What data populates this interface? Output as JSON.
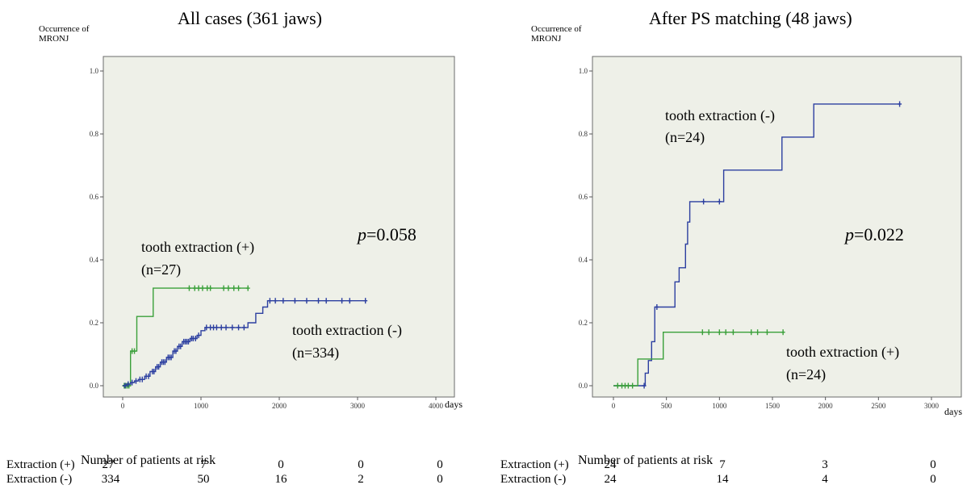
{
  "chart_data": [
    {
      "type": "line",
      "title": "All cases (361 jaws)",
      "ylabel": "Occurrence of MRONJ",
      "ylabel_lines": [
        "Occurrence of",
        "MRONJ"
      ],
      "xlabel": "days",
      "xlim": [
        0,
        4000
      ],
      "ylim": [
        0,
        1.0
      ],
      "x_ticks": [
        0,
        1000,
        2000,
        3000,
        4000
      ],
      "y_ticks": [
        0.0,
        0.2,
        0.4,
        0.6,
        0.8,
        1.0
      ],
      "y_tick_labels": [
        "0.0",
        "0.2",
        "0.4",
        "0.6",
        "0.8",
        "1.0"
      ],
      "background": "#eef0e8",
      "p_value_label": "=0.058",
      "p_symbol": "p",
      "series": [
        {
          "name": "tooth extraction (+)",
          "n_label": "(n=27)",
          "color": "#3aa03a",
          "steps": [
            [
              0,
              0
            ],
            [
              100,
              0
            ],
            [
              100,
              0.11
            ],
            [
              180,
              0.11
            ],
            [
              180,
              0.22
            ],
            [
              390,
              0.22
            ],
            [
              390,
              0.31
            ],
            [
              1600,
              0.31
            ]
          ],
          "censors": [
            [
              20,
              0
            ],
            [
              40,
              0
            ],
            [
              60,
              0
            ],
            [
              80,
              0
            ],
            [
              120,
              0.11
            ],
            [
              150,
              0.11
            ],
            [
              850,
              0.31
            ],
            [
              920,
              0.31
            ],
            [
              970,
              0.31
            ],
            [
              1020,
              0.31
            ],
            [
              1080,
              0.31
            ],
            [
              1120,
              0.31
            ],
            [
              1290,
              0.31
            ],
            [
              1350,
              0.31
            ],
            [
              1420,
              0.31
            ],
            [
              1480,
              0.31
            ],
            [
              1600,
              0.31
            ]
          ]
        },
        {
          "name": "tooth extraction (-)",
          "n_label": "(n=334)",
          "color": "#2c3fa0",
          "steps": [
            [
              0,
              0
            ],
            [
              50,
              0
            ],
            [
              50,
              0.005
            ],
            [
              100,
              0.005
            ],
            [
              100,
              0.01
            ],
            [
              150,
              0.01
            ],
            [
              150,
              0.015
            ],
            [
              200,
              0.015
            ],
            [
              200,
              0.02
            ],
            [
              280,
              0.02
            ],
            [
              280,
              0.03
            ],
            [
              350,
              0.03
            ],
            [
              350,
              0.045
            ],
            [
              420,
              0.045
            ],
            [
              420,
              0.06
            ],
            [
              480,
              0.06
            ],
            [
              480,
              0.075
            ],
            [
              560,
              0.075
            ],
            [
              560,
              0.09
            ],
            [
              640,
              0.09
            ],
            [
              640,
              0.11
            ],
            [
              700,
              0.11
            ],
            [
              700,
              0.125
            ],
            [
              760,
              0.125
            ],
            [
              760,
              0.14
            ],
            [
              860,
              0.14
            ],
            [
              860,
              0.15
            ],
            [
              950,
              0.15
            ],
            [
              950,
              0.16
            ],
            [
              1000,
              0.16
            ],
            [
              1000,
              0.175
            ],
            [
              1050,
              0.175
            ],
            [
              1050,
              0.185
            ],
            [
              1600,
              0.185
            ],
            [
              1600,
              0.2
            ],
            [
              1700,
              0.2
            ],
            [
              1700,
              0.23
            ],
            [
              1790,
              0.23
            ],
            [
              1790,
              0.25
            ],
            [
              1850,
              0.25
            ],
            [
              1850,
              0.27
            ],
            [
              3100,
              0.27
            ]
          ],
          "censors": [
            [
              30,
              0
            ],
            [
              70,
              0.005
            ],
            [
              120,
              0.01
            ],
            [
              170,
              0.015
            ],
            [
              220,
              0.02
            ],
            [
              250,
              0.02
            ],
            [
              300,
              0.03
            ],
            [
              330,
              0.03
            ],
            [
              380,
              0.045
            ],
            [
              400,
              0.045
            ],
            [
              440,
              0.06
            ],
            [
              460,
              0.06
            ],
            [
              500,
              0.075
            ],
            [
              520,
              0.075
            ],
            [
              540,
              0.075
            ],
            [
              580,
              0.09
            ],
            [
              600,
              0.09
            ],
            [
              620,
              0.09
            ],
            [
              660,
              0.11
            ],
            [
              680,
              0.11
            ],
            [
              720,
              0.125
            ],
            [
              740,
              0.125
            ],
            [
              780,
              0.14
            ],
            [
              800,
              0.14
            ],
            [
              820,
              0.14
            ],
            [
              840,
              0.14
            ],
            [
              880,
              0.15
            ],
            [
              900,
              0.15
            ],
            [
              930,
              0.15
            ],
            [
              970,
              0.16
            ],
            [
              1070,
              0.185
            ],
            [
              1120,
              0.185
            ],
            [
              1160,
              0.185
            ],
            [
              1200,
              0.185
            ],
            [
              1260,
              0.185
            ],
            [
              1320,
              0.185
            ],
            [
              1400,
              0.185
            ],
            [
              1480,
              0.185
            ],
            [
              1550,
              0.185
            ],
            [
              1880,
              0.27
            ],
            [
              1950,
              0.27
            ],
            [
              2050,
              0.27
            ],
            [
              2200,
              0.27
            ],
            [
              2350,
              0.27
            ],
            [
              2500,
              0.27
            ],
            [
              2600,
              0.27
            ],
            [
              2800,
              0.27
            ],
            [
              2900,
              0.27
            ],
            [
              3100,
              0.27
            ]
          ]
        }
      ],
      "risk_table": {
        "title": "Number of patients at risk",
        "rows": [
          {
            "label": "Extraction (+)",
            "values": [
              "27",
              "7",
              "0",
              "0",
              "0"
            ]
          },
          {
            "label": "Extraction (-)",
            "values": [
              "334",
              "50",
              "16",
              "2",
              "0"
            ]
          }
        ]
      }
    },
    {
      "type": "line",
      "title": "After PS matching  (48 jaws)",
      "ylabel": "Occurrence of MRONJ",
      "ylabel_lines": [
        "Occurrence of",
        "MRONJ"
      ],
      "xlabel": "days",
      "xlim": [
        0,
        3000
      ],
      "ylim": [
        0,
        1.0
      ],
      "x_ticks": [
        0,
        500,
        1000,
        1500,
        2000,
        2500,
        3000
      ],
      "y_ticks": [
        0.0,
        0.2,
        0.4,
        0.6,
        0.8,
        1.0
      ],
      "y_tick_labels": [
        "0.0",
        "0.2",
        "0.4",
        "0.6",
        "0.8",
        "1.0"
      ],
      "background": "#eef0e8",
      "p_value_label": "=0.022",
      "p_symbol": "p",
      "series": [
        {
          "name": "tooth extraction (-)",
          "n_label": "(n=24)",
          "color": "#2c3fa0",
          "steps": [
            [
              0,
              0
            ],
            [
              300,
              0
            ],
            [
              300,
              0.04
            ],
            [
              330,
              0.04
            ],
            [
              330,
              0.08
            ],
            [
              360,
              0.08
            ],
            [
              360,
              0.14
            ],
            [
              390,
              0.14
            ],
            [
              390,
              0.25
            ],
            [
              580,
              0.25
            ],
            [
              580,
              0.33
            ],
            [
              620,
              0.33
            ],
            [
              620,
              0.375
            ],
            [
              680,
              0.375
            ],
            [
              680,
              0.45
            ],
            [
              700,
              0.45
            ],
            [
              700,
              0.52
            ],
            [
              720,
              0.52
            ],
            [
              720,
              0.585
            ],
            [
              1040,
              0.585
            ],
            [
              1040,
              0.685
            ],
            [
              1590,
              0.685
            ],
            [
              1590,
              0.79
            ],
            [
              1890,
              0.79
            ],
            [
              1890,
              0.895
            ],
            [
              2700,
              0.895
            ]
          ],
          "censors": [
            [
              290,
              0
            ],
            [
              410,
              0.25
            ],
            [
              850,
              0.585
            ],
            [
              1000,
              0.585
            ],
            [
              2700,
              0.895
            ]
          ]
        },
        {
          "name": "tooth extraction (+)",
          "n_label": "(n=24)",
          "color": "#3aa03a",
          "steps": [
            [
              0,
              0
            ],
            [
              230,
              0
            ],
            [
              230,
              0.085
            ],
            [
              470,
              0.085
            ],
            [
              470,
              0.17
            ],
            [
              1600,
              0.17
            ]
          ],
          "censors": [
            [
              40,
              0
            ],
            [
              80,
              0
            ],
            [
              110,
              0
            ],
            [
              140,
              0
            ],
            [
              180,
              0
            ],
            [
              840,
              0.17
            ],
            [
              900,
              0.17
            ],
            [
              1000,
              0.17
            ],
            [
              1060,
              0.17
            ],
            [
              1130,
              0.17
            ],
            [
              1300,
              0.17
            ],
            [
              1360,
              0.17
            ],
            [
              1450,
              0.17
            ],
            [
              1600,
              0.17
            ]
          ]
        }
      ],
      "risk_table": {
        "title": "Number of patients at risk",
        "rows": [
          {
            "label": "Extraction (+)",
            "values": [
              "24",
              "7",
              "3",
              "0"
            ]
          },
          {
            "label": "Extraction (-)",
            "values": [
              "24",
              "14",
              "4",
              "0"
            ]
          }
        ]
      }
    }
  ]
}
